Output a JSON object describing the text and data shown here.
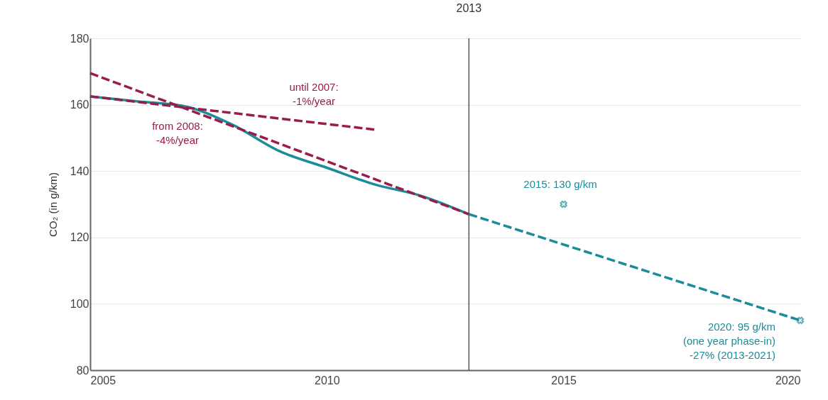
{
  "chart_data": {
    "type": "line",
    "ylabel": "CO₂ (in g/km)",
    "xlim": [
      2005,
      2020
    ],
    "ylim": [
      80,
      180
    ],
    "xticks": [
      2005,
      2010,
      2015,
      2020
    ],
    "yticks": [
      80,
      100,
      120,
      140,
      160,
      180
    ],
    "grid": "y",
    "series": [
      {
        "color": "#1b8c99",
        "line_style": "solid",
        "x": [
          2005,
          2006,
          2007,
          2008,
          2009,
          2010,
          2011,
          2012,
          2013
        ],
        "values": [
          162.5,
          161,
          159.5,
          154,
          146,
          141,
          136,
          132.5,
          127
        ]
      },
      {
        "color": "#1b8c99",
        "line_style": "dashed",
        "x": [
          2013,
          2020
        ],
        "values": [
          127,
          95
        ]
      },
      {
        "color": "#9b1b4b",
        "line_style": "dashed",
        "x": [
          2005,
          2011
        ],
        "values": [
          162.5,
          152.5
        ]
      },
      {
        "color": "#9b1b4b",
        "line_style": "dashed",
        "x": [
          2005,
          2013
        ],
        "values": [
          169.5,
          127
        ]
      },
      {
        "type": "scatter",
        "color": "#1b8c99",
        "marker": "cross",
        "x": [
          2015,
          2020
        ],
        "values": [
          130,
          95
        ]
      }
    ],
    "ref_lines": [
      {
        "axis": "x",
        "value": 2013,
        "label": "2013",
        "color": "#555555"
      }
    ],
    "annotations": [
      "until 2007:\n-1%/year",
      "from 2008:\n-4%/year",
      "2015: 130 g/km",
      "2020: 95 g/km\n(one year phase-in)\n-27% (2013-2021)"
    ]
  }
}
